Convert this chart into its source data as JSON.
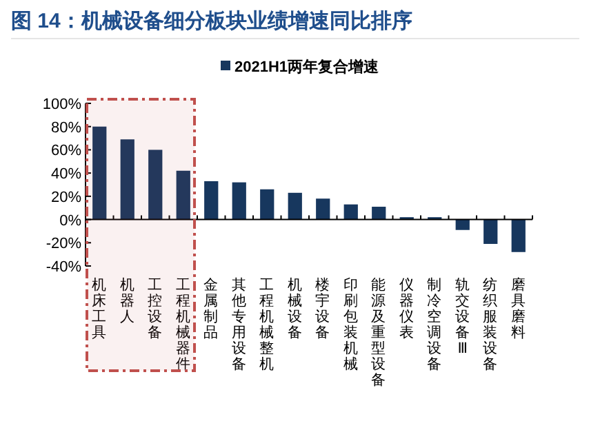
{
  "chart_data": {
    "type": "bar",
    "title": "图 14：机械设备细分板块业绩增速同比排序",
    "categories": [
      "机床工具",
      "机器人",
      "工控设备",
      "工程机械器件",
      "金属制品",
      "其他专用设备",
      "工程机械整机",
      "机械设备",
      "楼宇设备",
      "印刷包装机械",
      "能源及重型设备",
      "仪器仪表",
      "制冷空调设备",
      "轨交设备Ⅲ",
      "纺织服装设备",
      "磨具磨料"
    ],
    "series": [
      {
        "name": "2021H1两年复合增速",
        "color": "#17375e",
        "values": [
          80,
          69,
          60,
          42,
          33,
          32,
          26,
          23,
          18,
          13,
          11,
          2,
          2,
          -9,
          -21,
          -28
        ]
      }
    ],
    "ylim": [
      -40,
      100
    ],
    "yticks": [
      {
        "value": -40,
        "label": "-40%"
      },
      {
        "value": -20,
        "label": "-20%"
      },
      {
        "value": 0,
        "label": "0%"
      },
      {
        "value": 20,
        "label": "20%"
      },
      {
        "value": 40,
        "label": "40%"
      },
      {
        "value": 60,
        "label": "60%"
      },
      {
        "value": 80,
        "label": "80%"
      },
      {
        "value": 100,
        "label": "100%"
      }
    ],
    "bands": [
      {
        "axis": "x",
        "from": "机床工具",
        "to": "工程机械器件",
        "color": "#c0504d"
      }
    ],
    "legend": "top"
  }
}
